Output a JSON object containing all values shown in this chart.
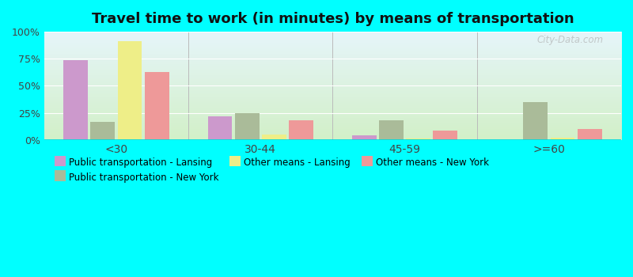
{
  "title": "Travel time to work (in minutes) by means of transportation",
  "categories": [
    "<30",
    "30-44",
    "45-59",
    ">=60"
  ],
  "series": {
    "Public transportation - Lansing": [
      74,
      22,
      4,
      0
    ],
    "Public transportation - New York": [
      17,
      25,
      18,
      35
    ],
    "Other means - Lansing": [
      91,
      5,
      1,
      2
    ],
    "Other means - New York": [
      63,
      18,
      9,
      10
    ]
  },
  "colors": {
    "Public transportation - Lansing": "#cc99cc",
    "Public transportation - New York": "#aabb99",
    "Other means - Lansing": "#eeee88",
    "Other means - New York": "#ee9999"
  },
  "bar_order": [
    "Public transportation - Lansing",
    "Public transportation - New York",
    "Other means - Lansing",
    "Other means - New York"
  ],
  "legend_order": [
    "Public transportation - Lansing",
    "Public transportation - New York",
    "Other means - Lansing",
    "Other means - New York"
  ],
  "ylim": [
    0,
    100
  ],
  "yticks": [
    0,
    25,
    50,
    75,
    100
  ],
  "ytick_labels": [
    "0%",
    "25%",
    "50%",
    "75%",
    "100%"
  ],
  "outer_background": "#00ffff",
  "title_fontsize": 13,
  "watermark": "City-Data.com"
}
